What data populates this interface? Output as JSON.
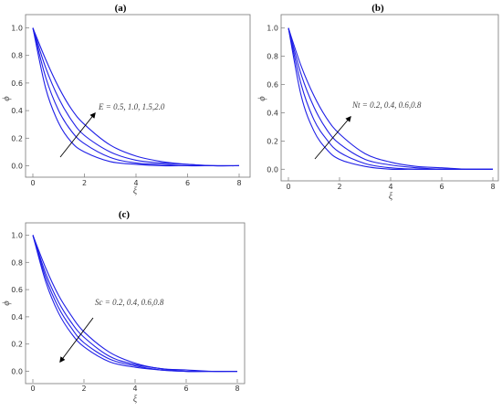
{
  "figure": {
    "line_color": "#1f1fe6"
  },
  "chart_data": [
    {
      "type": "line",
      "title": "(a)",
      "xlabel": "ξ",
      "ylabel": "ϕ",
      "xlim": [
        0,
        8
      ],
      "ylim": [
        -0.05,
        1.05
      ],
      "x_ticks": [
        "0",
        "2",
        "4",
        "6",
        "8"
      ],
      "y_ticks": [
        "0.0",
        "0.2",
        "0.4",
        "0.6",
        "0.8",
        "1.0"
      ],
      "grid": false,
      "annotation": {
        "text": "E = 0.5, 1.0, 1.5,2.0",
        "arrow_direction": "up"
      },
      "x": [
        0,
        0.5,
        1,
        1.5,
        2,
        3,
        4,
        5,
        6,
        7,
        8
      ],
      "series": [
        {
          "values": [
            1.0,
            0.56,
            0.31,
            0.17,
            0.1,
            0.03,
            0.01,
            0.0,
            0.0,
            0.0,
            0.0
          ]
        },
        {
          "values": [
            1.0,
            0.64,
            0.4,
            0.25,
            0.16,
            0.06,
            0.02,
            0.01,
            0.0,
            0.0,
            0.0
          ]
        },
        {
          "values": [
            1.0,
            0.71,
            0.49,
            0.33,
            0.22,
            0.1,
            0.04,
            0.02,
            0.01,
            0.0,
            0.0
          ]
        },
        {
          "values": [
            1.0,
            0.77,
            0.57,
            0.41,
            0.3,
            0.15,
            0.07,
            0.03,
            0.01,
            0.0,
            0.0
          ]
        }
      ]
    },
    {
      "type": "line",
      "title": "(b)",
      "xlabel": "ξ",
      "ylabel": "ϕ",
      "xlim": [
        0,
        8
      ],
      "ylim": [
        -0.05,
        1.05
      ],
      "x_ticks": [
        "0",
        "2",
        "4",
        "6",
        "8"
      ],
      "y_ticks": [
        "0.0",
        "0.2",
        "0.4",
        "0.6",
        "0.8",
        "1.0"
      ],
      "grid": false,
      "annotation": {
        "text": "Nt = 0.2, 0.4, 0.6,0.8",
        "arrow_direction": "up"
      },
      "x": [
        0,
        0.5,
        1,
        1.5,
        2,
        3,
        4,
        5,
        6,
        7,
        8
      ],
      "series": [
        {
          "values": [
            1.0,
            0.52,
            0.27,
            0.14,
            0.07,
            0.02,
            0.0,
            0.0,
            0.0,
            0.0,
            0.0
          ]
        },
        {
          "values": [
            1.0,
            0.6,
            0.35,
            0.21,
            0.12,
            0.04,
            0.01,
            0.0,
            0.0,
            0.0,
            0.0
          ]
        },
        {
          "values": [
            1.0,
            0.67,
            0.44,
            0.28,
            0.18,
            0.07,
            0.03,
            0.01,
            0.0,
            0.0,
            0.0
          ]
        },
        {
          "values": [
            1.0,
            0.73,
            0.52,
            0.36,
            0.25,
            0.11,
            0.05,
            0.02,
            0.01,
            0.0,
            0.0
          ]
        }
      ]
    },
    {
      "type": "line",
      "title": "(c)",
      "xlabel": "ξ",
      "ylabel": "ϕ",
      "xlim": [
        0,
        8
      ],
      "ylim": [
        -0.05,
        1.05
      ],
      "x_ticks": [
        "0",
        "2",
        "4",
        "6",
        "8"
      ],
      "y_ticks": [
        "0.0",
        "0.2",
        "0.4",
        "0.6",
        "0.8",
        "1.0"
      ],
      "grid": false,
      "annotation": {
        "text": "Sc = 0.2, 0.4, 0.6,0.8",
        "arrow_direction": "down"
      },
      "x": [
        0,
        0.5,
        1,
        1.5,
        2,
        3,
        4,
        5,
        6,
        7,
        8
      ],
      "series": [
        {
          "values": [
            1.0,
            0.76,
            0.56,
            0.41,
            0.29,
            0.14,
            0.06,
            0.02,
            0.01,
            0.0,
            0.0
          ]
        },
        {
          "values": [
            1.0,
            0.72,
            0.51,
            0.36,
            0.25,
            0.11,
            0.05,
            0.02,
            0.0,
            0.0,
            0.0
          ]
        },
        {
          "values": [
            1.0,
            0.69,
            0.47,
            0.32,
            0.21,
            0.09,
            0.04,
            0.01,
            0.0,
            0.0,
            0.0
          ]
        },
        {
          "values": [
            1.0,
            0.66,
            0.43,
            0.28,
            0.18,
            0.07,
            0.03,
            0.01,
            0.0,
            0.0,
            0.0
          ]
        }
      ]
    }
  ]
}
